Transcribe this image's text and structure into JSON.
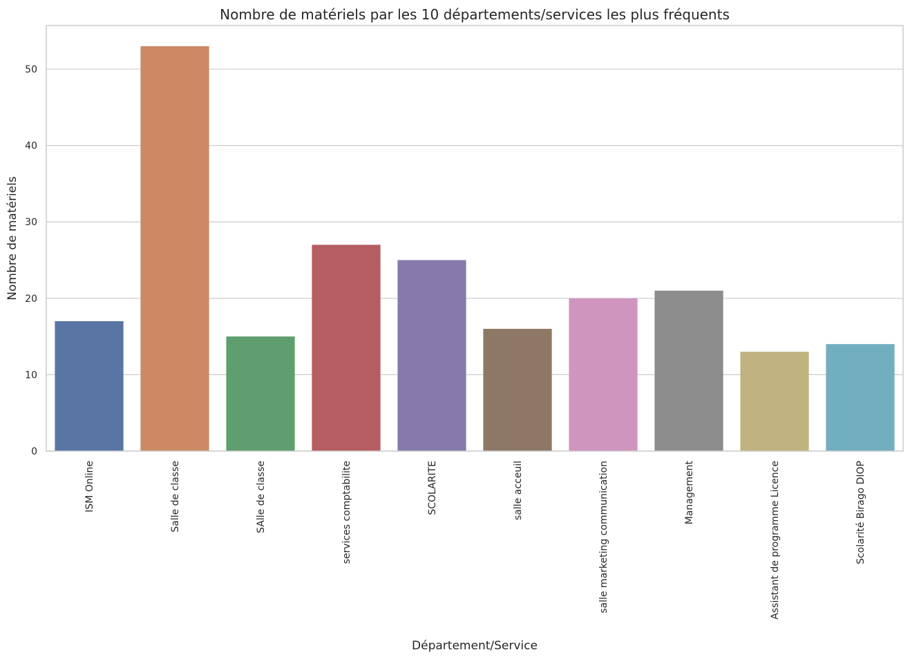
{
  "chart_data": {
    "type": "bar",
    "title": "Nombre de matériels par les 10 départements/services les plus fréquents",
    "xlabel": "Département/Service",
    "ylabel": "Nombre de matériels",
    "categories": [
      "ISM Online",
      "Salle de classe",
      "SAlle de classe",
      "services comptabilite",
      "SCOLARITE",
      "salle acceuil",
      "salle marketing communication",
      "Management",
      "Assistant de programme Licence",
      "Scolarité Birago DIOP"
    ],
    "values": [
      17,
      53,
      15,
      27,
      25,
      16,
      20,
      21,
      13,
      14
    ],
    "colors": [
      "#5975a4",
      "#cc8963",
      "#5f9e6e",
      "#b55d60",
      "#857aab",
      "#8d7866",
      "#d095bf",
      "#8c8c8c",
      "#c1b37f",
      "#71aec0"
    ],
    "ylim": [
      0,
      55.7
    ],
    "yticks": [
      0,
      10,
      20,
      30,
      40,
      50
    ],
    "grid": "horizontal",
    "legend": "none"
  }
}
